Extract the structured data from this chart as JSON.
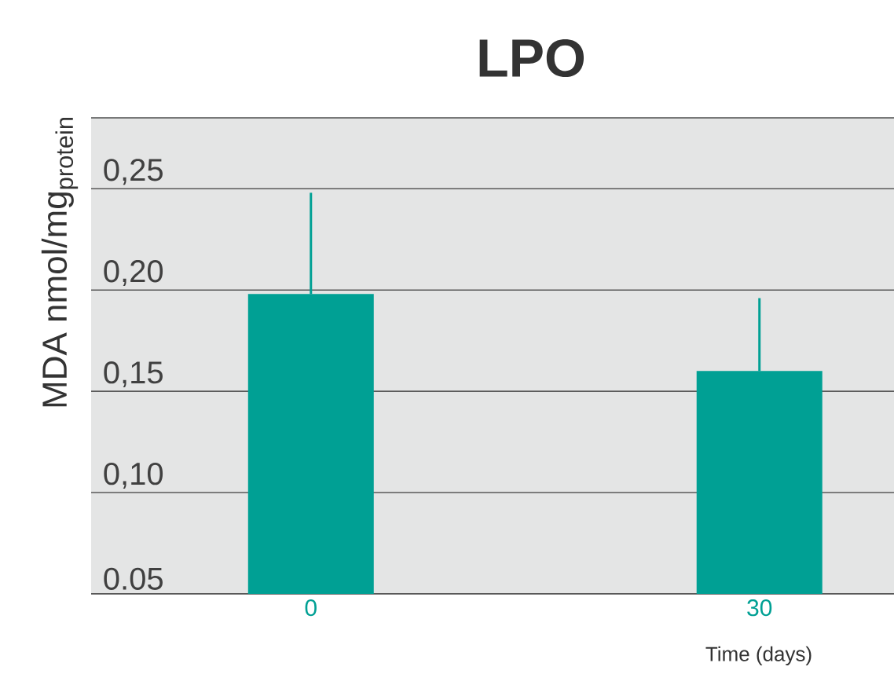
{
  "chart_data": {
    "type": "bar",
    "title": "LPO",
    "xlabel": "Time (days)",
    "ylabel": "MDA nmol/mg$_{protein}$",
    "categories": [
      "0",
      "30"
    ],
    "values": [
      0.198,
      0.16
    ],
    "errors": [
      [
        0.198,
        0.248
      ],
      [
        0.16,
        0.196
      ]
    ],
    "color": "#00a094",
    "ylim": [
      0.05,
      0.285
    ],
    "yticks": [
      {
        "value": 0.05,
        "label": "0.05"
      },
      {
        "value": 0.1,
        "label": "0,10"
      },
      {
        "value": 0.15,
        "label": "0,15"
      },
      {
        "value": 0.2,
        "label": "0,20"
      },
      {
        "value": 0.25,
        "label": "0,25"
      }
    ],
    "grid": "y"
  }
}
